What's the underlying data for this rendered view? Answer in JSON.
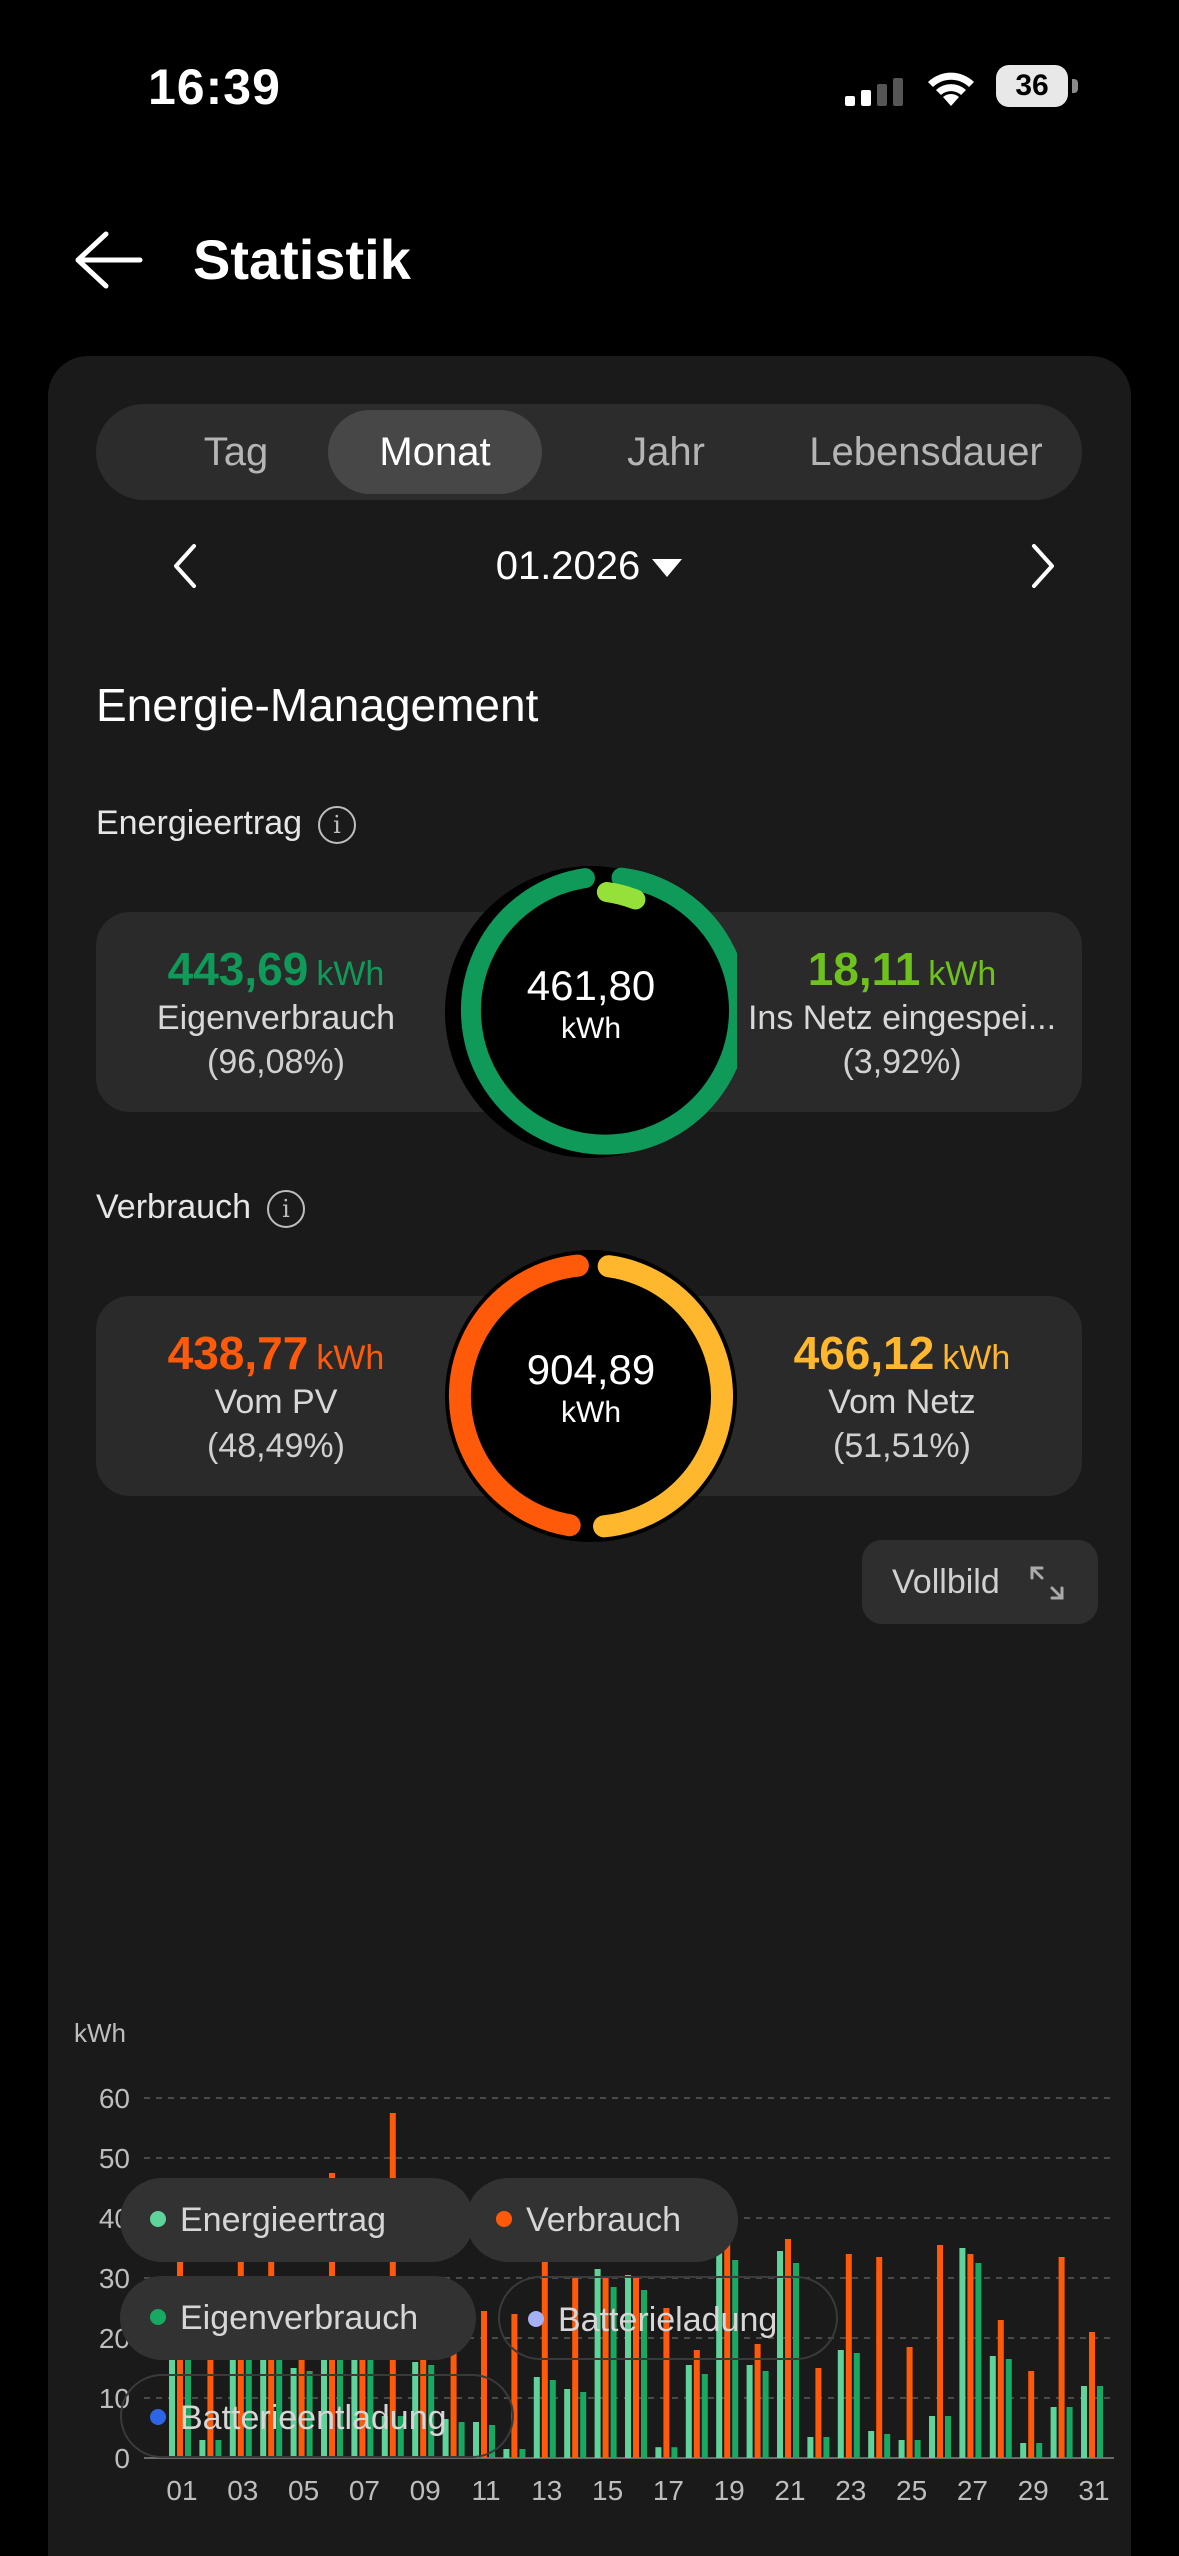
{
  "status_bar": {
    "time": "16:39",
    "battery": "36"
  },
  "header": {
    "title": "Statistik"
  },
  "tabs": [
    {
      "label": "Tag",
      "active": false
    },
    {
      "label": "Monat",
      "active": true
    },
    {
      "label": "Jahr",
      "active": false
    },
    {
      "label": "Lebensdauer",
      "active": false
    }
  ],
  "date": {
    "value": "01.2026"
  },
  "section_title": "Energie-Management",
  "energieertrag": {
    "label": "Energieertrag",
    "total": "461,80",
    "unit": "kWh",
    "left": {
      "value": "443,69",
      "unit": "kWh",
      "name": "Eigenverbrauch",
      "percent": "(96,08%)"
    },
    "right": {
      "value": "18,11",
      "unit": "kWh",
      "name": "Ins Netz eingespei...",
      "percent": "(3,92%)"
    }
  },
  "verbrauch": {
    "label": "Verbrauch",
    "total": "904,89",
    "unit": "kWh",
    "left": {
      "value": "438,77",
      "unit": "kWh",
      "name": "Vom PV",
      "percent": "(48,49%)"
    },
    "right": {
      "value": "466,12",
      "unit": "kWh",
      "name": "Vom Netz",
      "percent": "(51,51%)"
    }
  },
  "fullscreen_label": "Vollbild",
  "colors": {
    "green_dark": "#0f9a5a",
    "green_light": "#96e03a",
    "orange": "#ff5a0a",
    "yellow": "#ffb82e",
    "energieertrag": "#5fd49a",
    "verbrauch": "#ff5a0a",
    "eigenverbrauch": "#17a862",
    "batterieladung": "#a6b0f5",
    "batterieentladung": "#2c66e6"
  },
  "chart_data": {
    "type": "bar",
    "ylabel": "kWh",
    "ylim": [
      0,
      60
    ],
    "yticks": [
      "0",
      "10",
      "20",
      "30",
      "40",
      "50",
      "60"
    ],
    "categories": [
      "01",
      "02",
      "03",
      "04",
      "05",
      "06",
      "07",
      "08",
      "09",
      "10",
      "11",
      "12",
      "13",
      "14",
      "15",
      "16",
      "17",
      "18",
      "19",
      "20",
      "21",
      "22",
      "23",
      "24",
      "25",
      "26",
      "27",
      "28",
      "29",
      "30",
      "31"
    ],
    "xtick_labels": [
      "01",
      "03",
      "05",
      "07",
      "09",
      "11",
      "13",
      "15",
      "17",
      "19",
      "21",
      "23",
      "25",
      "27",
      "29",
      "31"
    ],
    "series": [
      {
        "name": "Energieertrag",
        "color": "#5fd49a",
        "values": [
          24,
          3,
          22,
          17,
          15,
          22.5,
          20.5,
          7,
          16,
          6.5,
          6,
          1.5,
          13.5,
          11.5,
          31.5,
          30.5,
          1.8,
          15.5,
          35.5,
          15.5,
          34.5,
          3.5,
          18,
          4.5,
          3,
          7,
          35,
          17,
          2.5,
          8.5,
          12
        ]
      },
      {
        "name": "Verbrauch",
        "color": "#ff5a0a",
        "values": [
          35,
          20.5,
          35,
          34,
          26.5,
          47.5,
          25.5,
          57.5,
          25.5,
          22.5,
          24.5,
          24,
          33.5,
          30,
          30,
          30,
          25,
          18,
          38,
          19,
          36.5,
          15,
          34,
          33.5,
          18.5,
          35.5,
          34,
          23,
          14.5,
          33.5,
          21
        ]
      },
      {
        "name": "Eigenverbrauch",
        "color": "#17a862",
        "values": [
          23.5,
          3,
          22,
          16.5,
          14.5,
          22,
          19.5,
          7,
          15.5,
          6,
          5.5,
          1.5,
          13,
          11,
          28.5,
          28,
          1.8,
          14,
          33,
          14.5,
          32.5,
          3.5,
          17.5,
          4,
          3,
          7,
          32.5,
          16.5,
          2.5,
          8.5,
          12
        ]
      },
      {
        "name": "Batterieladung",
        "color": "#a6b0f5",
        "values": [
          0,
          0,
          0,
          0,
          0,
          0,
          0,
          0,
          0,
          0,
          0,
          0,
          0,
          0,
          0,
          0,
          0,
          0,
          0,
          0,
          0,
          0,
          0,
          0,
          0,
          0,
          0,
          0,
          0,
          0,
          0
        ]
      },
      {
        "name": "Batterieentladung",
        "color": "#2c66e6",
        "values": [
          0,
          0,
          0,
          0,
          0,
          0,
          0,
          0,
          0,
          0,
          0,
          0,
          0,
          0,
          0,
          0,
          0,
          0,
          0,
          0,
          0,
          0,
          0,
          0,
          0,
          0,
          0,
          0,
          0,
          0,
          0
        ]
      }
    ]
  },
  "legend": [
    {
      "label": "Energieertrag",
      "color": "#5fd49a",
      "active": true
    },
    {
      "label": "Verbrauch",
      "color": "#ff5a0a",
      "active": true
    },
    {
      "label": "Eigenverbrauch",
      "color": "#17a862",
      "active": true
    },
    {
      "label": "Batterieladung",
      "color": "#a6b0f5",
      "active": false
    },
    {
      "label": "Batterieentladung",
      "color": "#2c66e6",
      "active": false
    }
  ]
}
